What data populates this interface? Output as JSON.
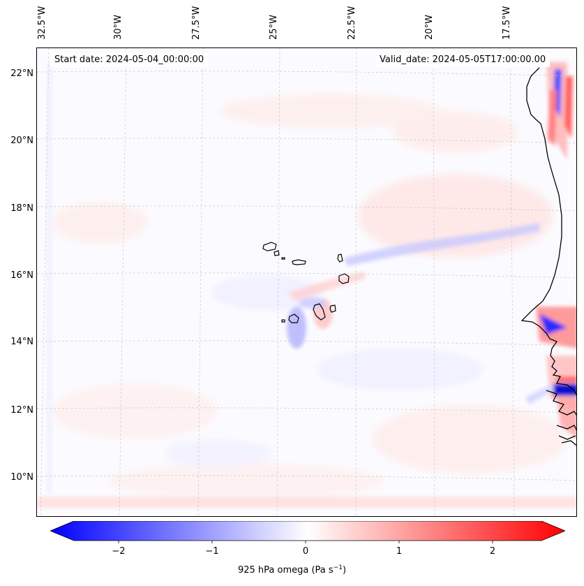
{
  "map": {
    "start_date": "Start date: 2024-05-04_00:00:00",
    "valid_date": "Valid_date: 2024-05-05T17:00:00.00",
    "lon_labels": [
      "32.5°W",
      "30°W",
      "27.5°W",
      "25°W",
      "22.5°W",
      "20°W",
      "17.5°W"
    ],
    "lat_labels": [
      "22°N",
      "20°N",
      "18°N",
      "16°N",
      "14°N",
      "12°N",
      "10°N"
    ]
  },
  "colorbar": {
    "ticks": [
      "−2",
      "−1",
      "0",
      "1",
      "2"
    ],
    "label_main": "925 hPa omega (Pa s",
    "label_exp": "−1",
    "label_close": ")",
    "min_color": "#0000ff",
    "mid_color": "#ffffff",
    "max_color": "#ff0000"
  }
}
